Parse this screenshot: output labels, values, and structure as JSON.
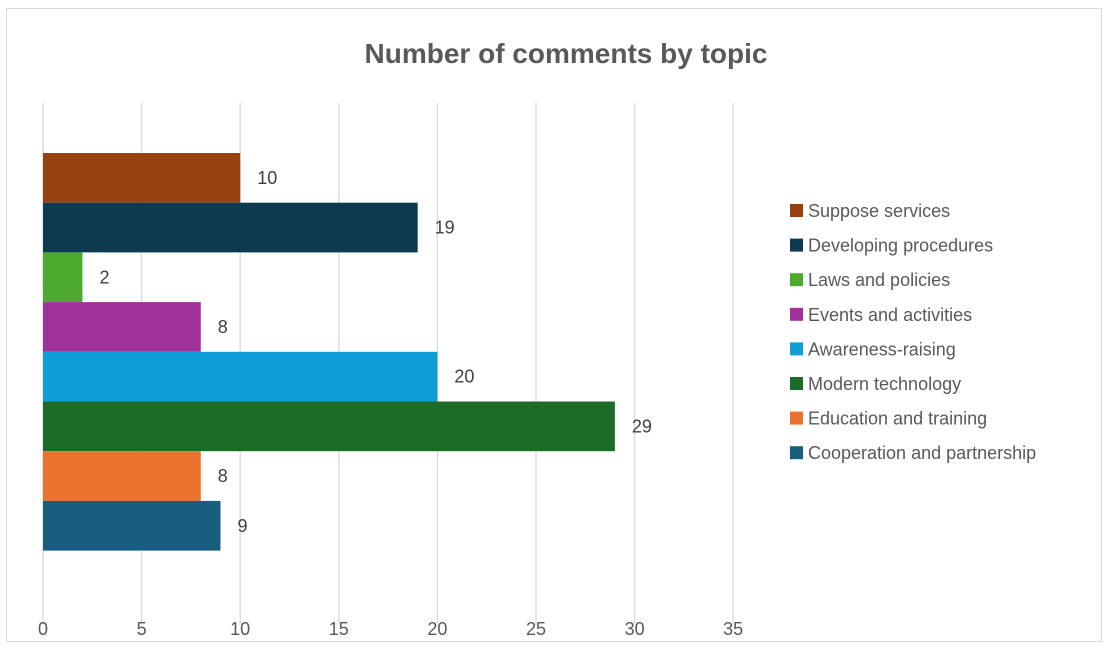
{
  "chart_data": {
    "type": "bar",
    "orientation": "horizontal",
    "title": "Number of comments by topic",
    "categories": [
      "Suppose services",
      "Developing procedures",
      "Laws and policies",
      "Events and activities",
      "Awareness-raising",
      "Modern technology",
      "Education and training",
      "Cooperation and partnership"
    ],
    "values": [
      10,
      19,
      2,
      8,
      20,
      29,
      8,
      9
    ],
    "colors": [
      "#974010",
      "#0e3a51",
      "#4eaa2f",
      "#a2309b",
      "#0f9fd7",
      "#1c6c27",
      "#eb7330",
      "#185f7f"
    ],
    "xlim": [
      0,
      35
    ],
    "xticks": [
      "0",
      "5",
      "10",
      "15",
      "20",
      "25",
      "30",
      "35"
    ],
    "grid": "vertical",
    "legend_position": "right",
    "data_labels": true
  }
}
